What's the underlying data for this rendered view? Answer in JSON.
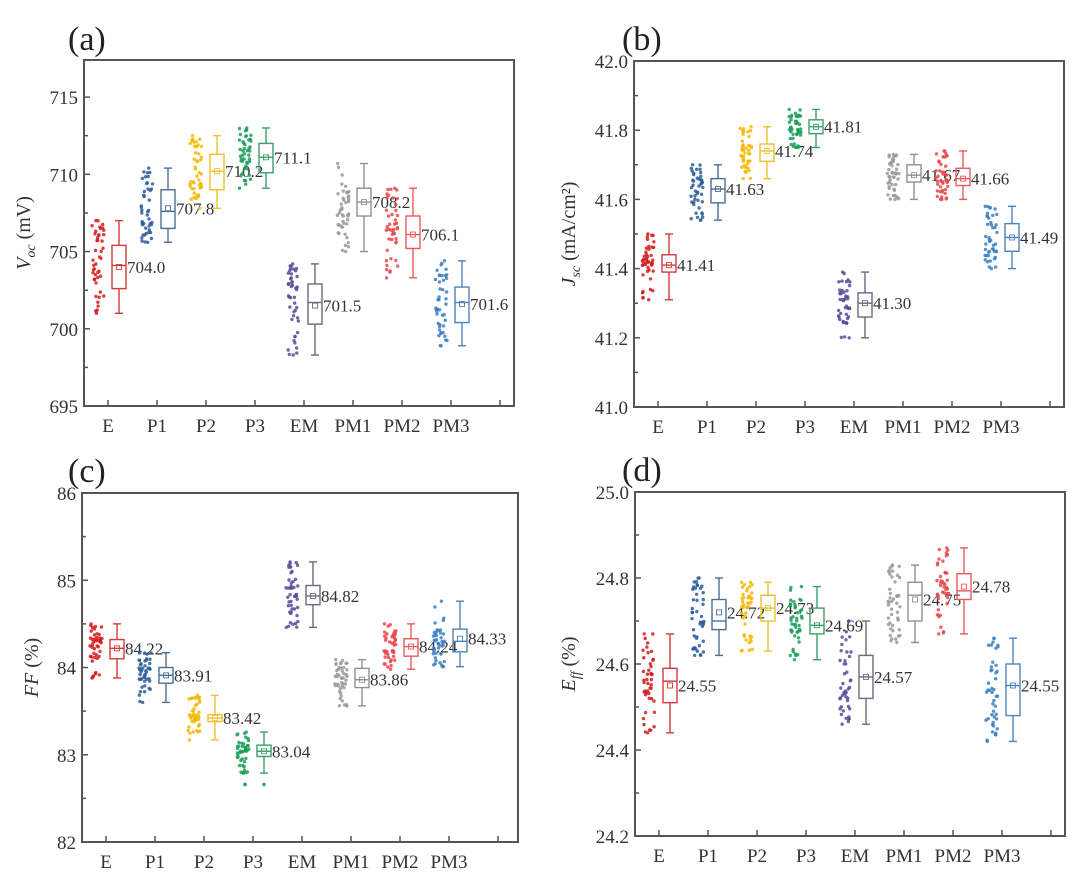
{
  "figure": {
    "panels_count": 4
  },
  "chart_data": [
    {
      "type": "box",
      "panel_label": "(a)",
      "title": "",
      "ylabel_main": "V",
      "ylabel_sub": "oc",
      "ylabel_unit": " (mV)",
      "xlabel": "",
      "ylim": [
        695,
        717.4
      ],
      "yticks": [
        695,
        700,
        705,
        710,
        715
      ],
      "ytick_labels": [
        "695",
        "700",
        "705",
        "710",
        "715"
      ],
      "categories": [
        "E",
        "P1",
        "P2",
        "P3",
        "EM",
        "PM1",
        "PM2",
        "PM3"
      ],
      "colors": [
        "#d7191c",
        "#2b5c9a",
        "#f5b800",
        "#1b9e5a",
        "#5a4a9a",
        "#999999",
        "#e8474c",
        "#3a7fc4"
      ],
      "box_colors": [
        "#d43a3a",
        "#4a6f96",
        "#f0c030",
        "#3aa06a",
        "#6a6a80",
        "#909090",
        "#e85a5a",
        "#4f82b8"
      ],
      "mean_labels": [
        "704.0",
        "707.8",
        "710.2",
        "711.1",
        "701.5",
        "708.2",
        "706.1",
        "701.6"
      ],
      "stats": [
        {
          "min": 701.0,
          "q1": 702.6,
          "median": 704.1,
          "q3": 705.4,
          "max": 707.0,
          "mean": 704.0
        },
        {
          "min": 705.6,
          "q1": 706.5,
          "median": 707.6,
          "q3": 709.0,
          "max": 710.4,
          "mean": 707.8
        },
        {
          "min": 707.8,
          "q1": 709.0,
          "median": 710.2,
          "q3": 711.3,
          "max": 712.5,
          "mean": 710.2
        },
        {
          "min": 709.1,
          "q1": 710.1,
          "median": 711.1,
          "q3": 712.0,
          "max": 713.0,
          "mean": 711.1
        },
        {
          "min": 698.3,
          "q1": 700.3,
          "median": 701.7,
          "q3": 702.9,
          "max": 704.2,
          "mean": 701.5
        },
        {
          "min": 705.0,
          "q1": 707.3,
          "median": 708.2,
          "q3": 709.1,
          "max": 710.7,
          "mean": 708.2
        },
        {
          "min": 703.3,
          "q1": 705.2,
          "median": 706.1,
          "q3": 707.3,
          "max": 709.1,
          "mean": 706.1
        },
        {
          "min": 698.9,
          "q1": 700.4,
          "median": 701.7,
          "q3": 702.7,
          "max": 704.4,
          "mean": 701.6
        }
      ]
    },
    {
      "type": "box",
      "panel_label": "(b)",
      "title": "",
      "ylabel_main": "J",
      "ylabel_sub": "sc",
      "ylabel_unit": " (mA/cm²)",
      "xlabel": "",
      "ylim": [
        41.0,
        42.0
      ],
      "yticks": [
        41.0,
        41.2,
        41.4,
        41.6,
        41.8,
        42.0
      ],
      "ytick_labels": [
        "41.0",
        "41.2",
        "41.4",
        "41.6",
        "41.8",
        "42.0"
      ],
      "categories": [
        "E",
        "P1",
        "P2",
        "P3",
        "EM",
        "PM1",
        "PM2",
        "PM3"
      ],
      "colors": [
        "#d7191c",
        "#2b5c9a",
        "#f5b800",
        "#1b9e5a",
        "#5a4a9a",
        "#999999",
        "#e8474c",
        "#3a7fc4"
      ],
      "box_colors": [
        "#d43a3a",
        "#4a6f96",
        "#f0c030",
        "#3aa06a",
        "#6a6a80",
        "#909090",
        "#e85a5a",
        "#4f82b8"
      ],
      "mean_labels": [
        "41.41",
        "41.63",
        "41.74",
        "41.81",
        "41.30",
        "41.67",
        "41.66",
        "41.49"
      ],
      "stats": [
        {
          "min": 41.31,
          "q1": 41.39,
          "median": 41.41,
          "q3": 41.44,
          "max": 41.5,
          "mean": 41.41
        },
        {
          "min": 41.54,
          "q1": 41.59,
          "median": 41.63,
          "q3": 41.66,
          "max": 41.7,
          "mean": 41.63
        },
        {
          "min": 41.66,
          "q1": 41.71,
          "median": 41.74,
          "q3": 41.76,
          "max": 41.81,
          "mean": 41.74
        },
        {
          "min": 41.75,
          "q1": 41.79,
          "median": 41.81,
          "q3": 41.83,
          "max": 41.86,
          "mean": 41.81
        },
        {
          "min": 41.2,
          "q1": 41.26,
          "median": 41.3,
          "q3": 41.33,
          "max": 41.39,
          "mean": 41.3
        },
        {
          "min": 41.6,
          "q1": 41.65,
          "median": 41.67,
          "q3": 41.7,
          "max": 41.73,
          "mean": 41.67
        },
        {
          "min": 41.6,
          "q1": 41.64,
          "median": 41.66,
          "q3": 41.69,
          "max": 41.74,
          "mean": 41.66
        },
        {
          "min": 41.4,
          "q1": 41.45,
          "median": 41.49,
          "q3": 41.53,
          "max": 41.58,
          "mean": 41.49
        }
      ]
    },
    {
      "type": "box",
      "panel_label": "(c)",
      "title": "",
      "ylabel_main": "FF",
      "ylabel_sub": "",
      "ylabel_unit": " (%)",
      "xlabel": "",
      "ylim": [
        82,
        86
      ],
      "yticks": [
        82,
        83,
        84,
        85,
        86
      ],
      "ytick_labels": [
        "82",
        "83",
        "84",
        "85",
        "86"
      ],
      "categories": [
        "E",
        "P1",
        "P2",
        "P3",
        "EM",
        "PM1",
        "PM2",
        "PM3"
      ],
      "colors": [
        "#d7191c",
        "#2b5c9a",
        "#f5b800",
        "#1b9e5a",
        "#5a4a9a",
        "#999999",
        "#e8474c",
        "#3a7fc4"
      ],
      "box_colors": [
        "#d43a3a",
        "#4a6f96",
        "#f0c030",
        "#3aa06a",
        "#6a6a80",
        "#909090",
        "#e85a5a",
        "#4f82b8"
      ],
      "mean_labels": [
        "84.22",
        "83.91",
        "83.42",
        "83.04",
        "84.82",
        "83.86",
        "84.24",
        "84.33"
      ],
      "stats": [
        {
          "min": 83.88,
          "q1": 84.1,
          "median": 84.22,
          "q3": 84.32,
          "max": 84.5,
          "mean": 84.22
        },
        {
          "min": 83.6,
          "q1": 83.82,
          "median": 83.91,
          "q3": 84.0,
          "max": 84.17,
          "mean": 83.91
        },
        {
          "min": 83.17,
          "q1": 83.38,
          "median": 83.42,
          "q3": 83.46,
          "max": 83.68,
          "mean": 83.42
        },
        {
          "min": 82.79,
          "q1": 82.98,
          "median": 83.04,
          "q3": 83.11,
          "max": 83.26,
          "mean": 83.04
        },
        {
          "min": 84.46,
          "q1": 84.72,
          "median": 84.82,
          "q3": 84.94,
          "max": 85.21,
          "mean": 84.82
        },
        {
          "min": 83.56,
          "q1": 83.77,
          "median": 83.86,
          "q3": 83.99,
          "max": 84.09,
          "mean": 83.86
        },
        {
          "min": 83.98,
          "q1": 84.13,
          "median": 84.24,
          "q3": 84.33,
          "max": 84.5,
          "mean": 84.24
        },
        {
          "min": 84.01,
          "q1": 84.18,
          "median": 84.3,
          "q3": 84.44,
          "max": 84.76,
          "mean": 84.33
        }
      ],
      "outliers": [
        {
          "category": "P3",
          "values": [
            82.66
          ]
        }
      ]
    },
    {
      "type": "box",
      "panel_label": "(d)",
      "title": "",
      "ylabel_main": "E",
      "ylabel_sub": "ff",
      "ylabel_unit": " (%)",
      "xlabel": "",
      "ylim": [
        24.2,
        25.0
      ],
      "yticks": [
        24.2,
        24.4,
        24.6,
        24.8,
        25.0
      ],
      "ytick_labels": [
        "24.2",
        "24.4",
        "24.6",
        "24.8",
        "25.0"
      ],
      "categories": [
        "E",
        "P1",
        "P2",
        "P3",
        "EM",
        "PM1",
        "PM2",
        "PM3"
      ],
      "colors": [
        "#d7191c",
        "#2b5c9a",
        "#f5b800",
        "#1b9e5a",
        "#5a4a9a",
        "#999999",
        "#e8474c",
        "#3a7fc4"
      ],
      "box_colors": [
        "#d43a3a",
        "#4a6f96",
        "#f0c030",
        "#3aa06a",
        "#6a6a80",
        "#909090",
        "#e85a5a",
        "#4f82b8"
      ],
      "mean_labels": [
        "24.55",
        "24.72",
        "24.73",
        "24.69",
        "24.57",
        "24.75",
        "24.78",
        "24.55"
      ],
      "stats": [
        {
          "min": 24.44,
          "q1": 24.51,
          "median": 24.56,
          "q3": 24.59,
          "max": 24.67,
          "mean": 24.55
        },
        {
          "min": 24.62,
          "q1": 24.68,
          "median": 24.7,
          "q3": 24.75,
          "max": 24.8,
          "mean": 24.72
        },
        {
          "min": 24.63,
          "q1": 24.7,
          "median": 24.73,
          "q3": 24.76,
          "max": 24.79,
          "mean": 24.73
        },
        {
          "min": 24.61,
          "q1": 24.67,
          "median": 24.69,
          "q3": 24.73,
          "max": 24.78,
          "mean": 24.69
        },
        {
          "min": 24.46,
          "q1": 24.52,
          "median": 24.57,
          "q3": 24.62,
          "max": 24.7,
          "mean": 24.57
        },
        {
          "min": 24.65,
          "q1": 24.7,
          "median": 24.76,
          "q3": 24.79,
          "max": 24.83,
          "mean": 24.75
        },
        {
          "min": 24.67,
          "q1": 24.75,
          "median": 24.77,
          "q3": 24.81,
          "max": 24.87,
          "mean": 24.78
        },
        {
          "min": 24.42,
          "q1": 24.48,
          "median": 24.55,
          "q3": 24.6,
          "max": 24.66,
          "mean": 24.55
        }
      ]
    }
  ]
}
